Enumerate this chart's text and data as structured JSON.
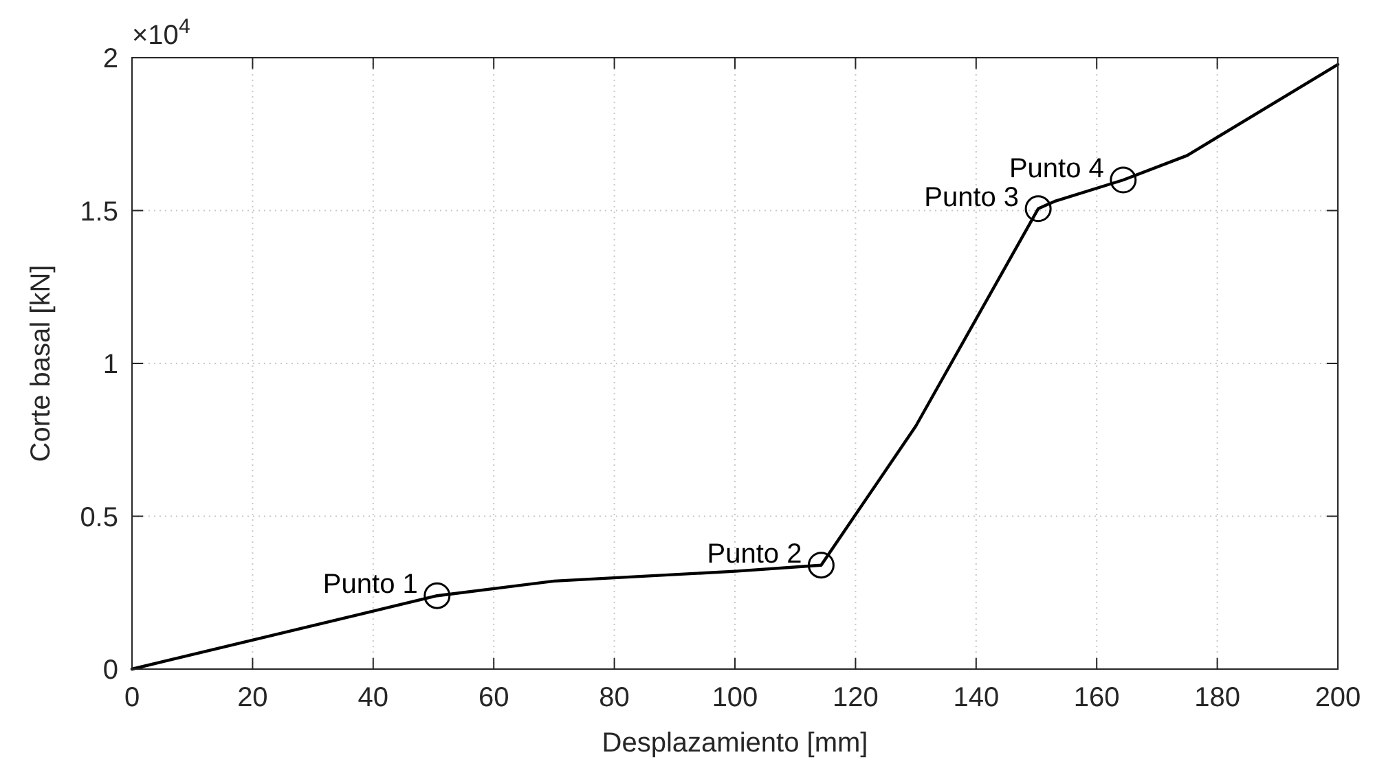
{
  "chart_data": {
    "type": "line",
    "xlabel": "Desplazamiento [mm]",
    "ylabel": "Corte basal [kN]",
    "xlim": [
      0,
      200
    ],
    "xticks": [
      0,
      20,
      40,
      60,
      80,
      100,
      120,
      140,
      160,
      180,
      200
    ],
    "ylim": [
      0,
      2
    ],
    "yticks": [
      0,
      0.5,
      1,
      1.5,
      2
    ],
    "grid": true,
    "series": [
      {
        "color": "#000000",
        "marker": "none",
        "x": [
          0,
          50.6,
          70,
          100,
          114.3,
          130,
          150.3,
          153,
          164.4,
          175,
          200
        ],
        "values": [
          0,
          0.24,
          0.288,
          0.32,
          0.34,
          0.795,
          1.506,
          1.53,
          1.6,
          1.68,
          1.978
        ]
      },
      {
        "type": "scatter",
        "color": "#000000",
        "marker": "circle",
        "x": [
          50.6,
          114.3,
          150.3,
          164.4
        ],
        "values": [
          0.24,
          0.34,
          1.506,
          1.6
        ]
      }
    ],
    "annotations": [
      "×10$^{4}$",
      {
        "text": "Punto 1",
        "x": 50.6,
        "y": 0.24
      },
      {
        "text": "Punto 2",
        "x": 114.3,
        "y": 0.34
      },
      {
        "text": "Punto 3",
        "x": 150.3,
        "y": 1.506
      },
      {
        "text": "Punto 4",
        "x": 164.4,
        "y": 1.6
      }
    ]
  }
}
